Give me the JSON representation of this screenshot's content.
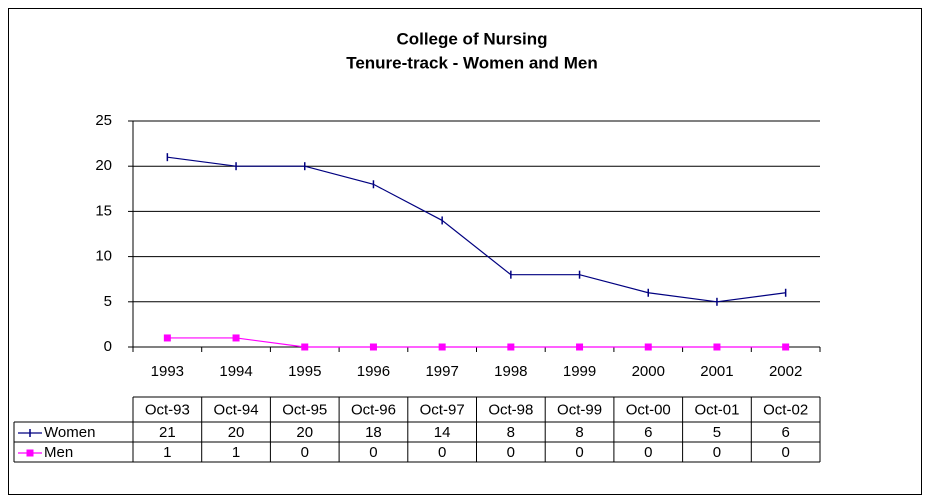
{
  "chart_data": {
    "type": "line",
    "title": "College of Nursing",
    "subtitle": "Tenure-track - Women and Men",
    "categories": [
      "1993",
      "1994",
      "1995",
      "1996",
      "1997",
      "1998",
      "1999",
      "2000",
      "2001",
      "2002"
    ],
    "table_headers": [
      "Oct-93",
      "Oct-94",
      "Oct-95",
      "Oct-96",
      "Oct-97",
      "Oct-98",
      "Oct-99",
      "Oct-00",
      "Oct-01",
      "Oct-02"
    ],
    "series": [
      {
        "name": "Women",
        "color": "#000080",
        "marker": "dash",
        "values": [
          21,
          20,
          20,
          18,
          14,
          8,
          8,
          6,
          5,
          6
        ]
      },
      {
        "name": "Men",
        "color": "#ff00ff",
        "marker": "square",
        "values": [
          1,
          1,
          0,
          0,
          0,
          0,
          0,
          0,
          0,
          0
        ]
      }
    ],
    "ylim": [
      0,
      25
    ],
    "yticks": [
      0,
      5,
      10,
      15,
      20,
      25
    ],
    "grid": true
  }
}
